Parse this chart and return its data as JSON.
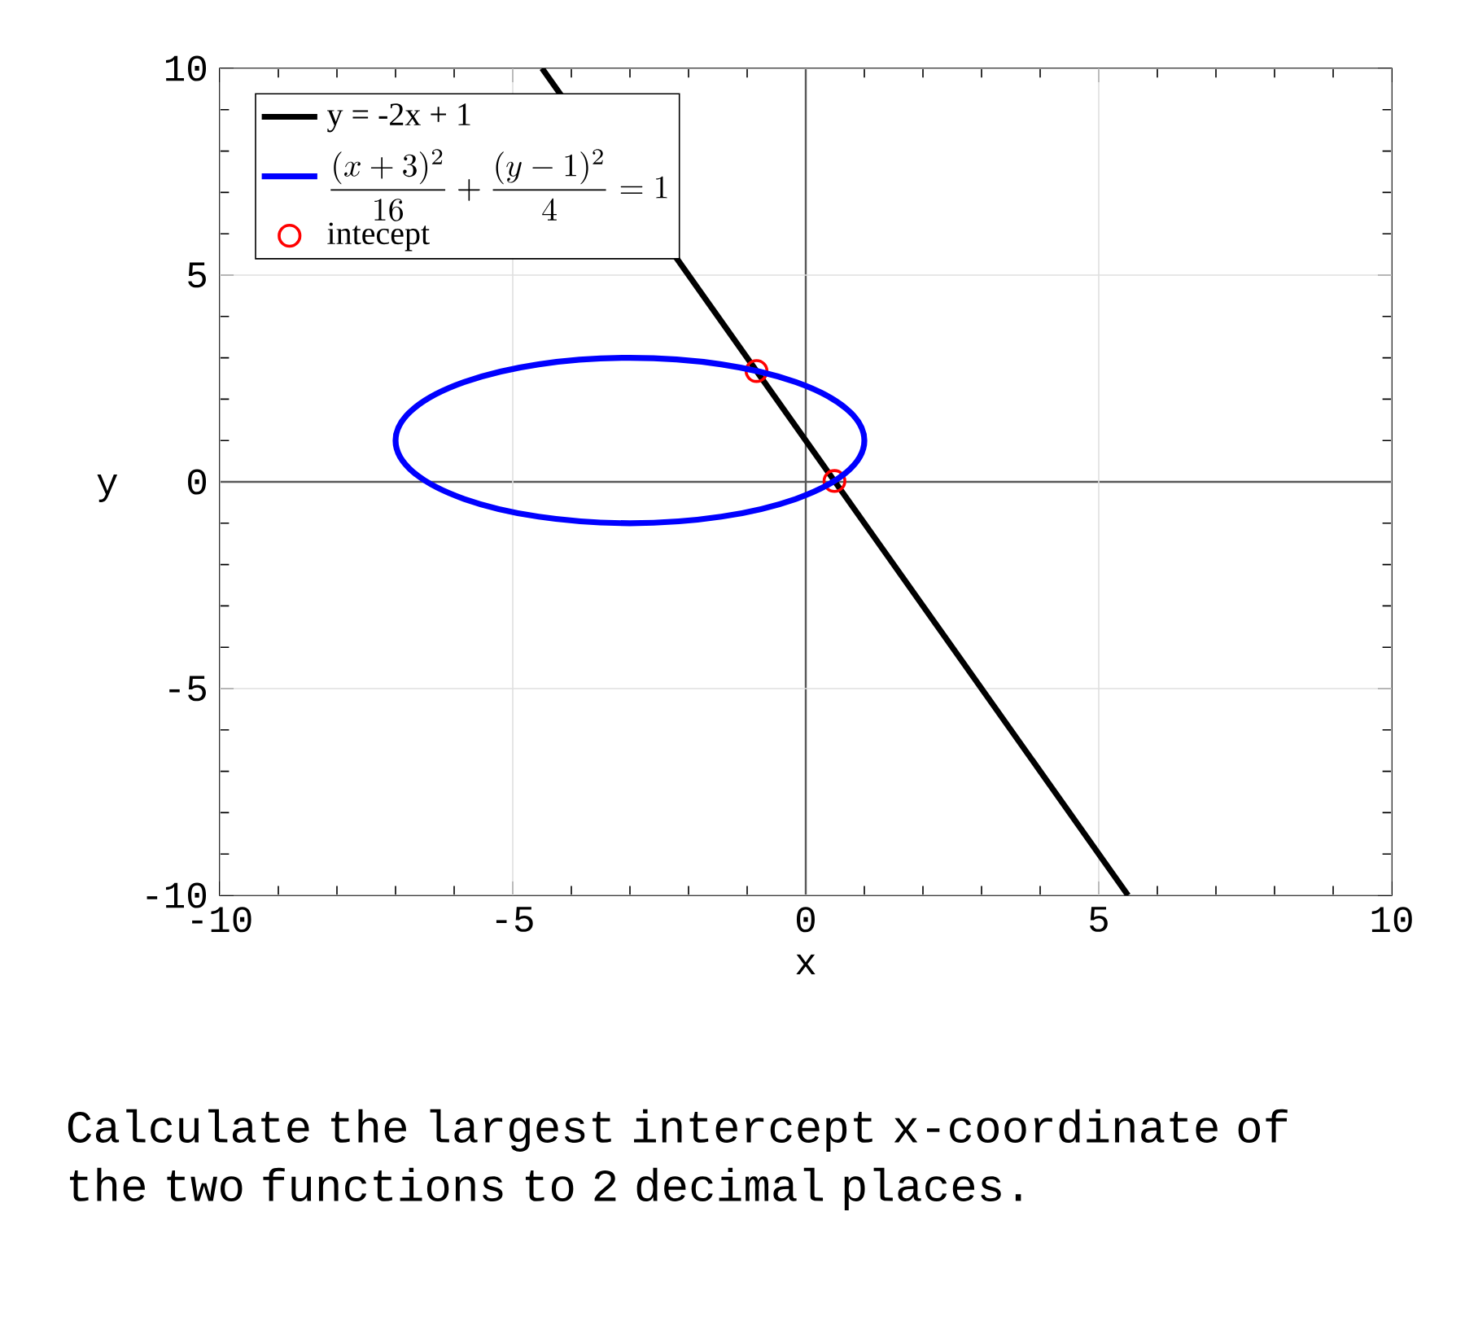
{
  "chart_data": {
    "type": "line",
    "xlabel": "x",
    "ylabel": "y",
    "xlim": [
      -10,
      10
    ],
    "ylim": [
      -10,
      10
    ],
    "xticks": [
      -10,
      -5,
      0,
      5,
      10
    ],
    "yticks": [
      -10,
      -5,
      0,
      5,
      10
    ],
    "grid": true,
    "legend": "top left",
    "line_style": "solid",
    "series": [
      {
        "name": "y = -2x + 1",
        "color": "#000000",
        "x": [
          -4.5,
          5.5
        ],
        "values": [
          10,
          -10
        ]
      },
      {
        "name": "\\frac{(x+3)^2}{16}+\\frac{(y-1)^2}{4}=1",
        "color": "#0000ff"
      },
      {
        "name": "intecept",
        "type": "scatter",
        "marker": "circle",
        "color": "#ff0000",
        "x": [
          -0.84,
          0.49
        ],
        "values": [
          2.68,
          0.02
        ]
      }
    ],
    "annotations": [
      "Calculate the largest intercept x-coordinate of the two functions to 2 decimal places."
    ]
  }
}
